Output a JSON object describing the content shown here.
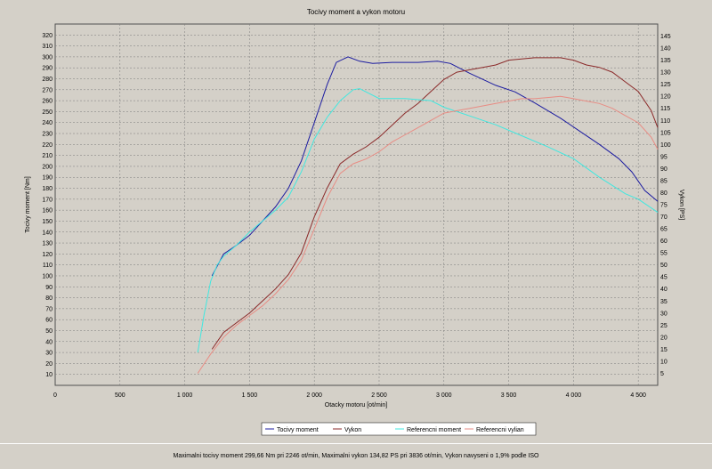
{
  "footer_text": "Maximalni tocivy moment 299,66 Nm pri 2246 ot/min,  Maximalni vykon 134,82 PS pri 3836 ot/min,  Vykon navyseni o 1,9% podle ISO",
  "colors": {
    "background": "#d4d0c8",
    "grid": "#7a7a7a",
    "torque": "#1c1ca0",
    "power": "#8b2a2a",
    "ref_torque": "#40e8e0",
    "ref_power": "#e88c84"
  },
  "chart_data": {
    "type": "line",
    "title": "Tocivy moment a vykon motoru",
    "xlabel": "Otacky motoru [ot/min]",
    "ylabel": "Tocivy moment [Nm]",
    "y2label": "Vykon [PS]",
    "xlim": [
      0,
      4650
    ],
    "ylim": [
      0,
      330
    ],
    "y2lim": [
      0,
      150
    ],
    "x_ticks": [
      0,
      500,
      1000,
      1500,
      2000,
      2500,
      3000,
      3500,
      4000,
      4500
    ],
    "x_tick_labels": [
      "0",
      "500",
      "1 000",
      "1 500",
      "2 000",
      "2 500",
      "3 000",
      "3 500",
      "4 000",
      "4 500"
    ],
    "y_ticks": [
      10,
      20,
      30,
      40,
      50,
      60,
      70,
      80,
      90,
      100,
      110,
      120,
      130,
      140,
      150,
      160,
      170,
      180,
      190,
      200,
      210,
      220,
      230,
      240,
      250,
      260,
      270,
      280,
      290,
      300,
      310,
      320
    ],
    "y2_ticks": [
      5,
      10,
      15,
      20,
      25,
      30,
      35,
      40,
      45,
      50,
      55,
      60,
      65,
      70,
      75,
      80,
      85,
      90,
      95,
      100,
      105,
      110,
      115,
      120,
      125,
      130,
      135,
      140,
      145
    ],
    "grid": true,
    "legend_position": "bottom-center",
    "legend": [
      "Tocivy moment",
      "Vykon",
      "Referencni moment",
      "Referencni vylian"
    ],
    "series": [
      {
        "name": "Tocivy moment",
        "axis": "left",
        "x": [
          1210,
          1300,
          1400,
          1500,
          1600,
          1700,
          1800,
          1900,
          2000,
          2100,
          2170,
          2260,
          2350,
          2450,
          2600,
          2800,
          2950,
          3050,
          3200,
          3400,
          3550,
          3700,
          3900,
          4050,
          4200,
          4350,
          4450,
          4550,
          4650
        ],
        "y": [
          100,
          120,
          128,
          137,
          150,
          163,
          180,
          205,
          240,
          275,
          295,
          300,
          296,
          294,
          295,
          295,
          296,
          294,
          285,
          274,
          268,
          258,
          244,
          232,
          220,
          207,
          195,
          178,
          168
        ]
      },
      {
        "name": "Vykon",
        "axis": "right",
        "x": [
          1210,
          1300,
          1400,
          1500,
          1600,
          1700,
          1800,
          1900,
          2000,
          2100,
          2200,
          2300,
          2400,
          2500,
          2600,
          2700,
          2800,
          2900,
          3000,
          3100,
          3200,
          3300,
          3400,
          3500,
          3600,
          3700,
          3800,
          3900,
          4000,
          4100,
          4200,
          4300,
          4400,
          4500,
          4600,
          4650
        ],
        "y": [
          15,
          22,
          26,
          30,
          35,
          40,
          46,
          55,
          70,
          82,
          92,
          96,
          99,
          103,
          108,
          113,
          117,
          122,
          127,
          130,
          131,
          132,
          133,
          135,
          135.5,
          136,
          136,
          136,
          135,
          133,
          132,
          130,
          126,
          122,
          114,
          107
        ]
      },
      {
        "name": "Referencni moment",
        "axis": "left",
        "x": [
          1100,
          1150,
          1200,
          1250,
          1300,
          1400,
          1500,
          1600,
          1700,
          1800,
          1900,
          2000,
          2100,
          2200,
          2300,
          2350,
          2400,
          2500,
          2700,
          2900,
          3000,
          3200,
          3400,
          3600,
          3800,
          4000,
          4200,
          4400,
          4500,
          4650
        ],
        "y": [
          30,
          65,
          95,
          110,
          118,
          128,
          140,
          150,
          160,
          172,
          195,
          225,
          245,
          260,
          270,
          271,
          268,
          262,
          262,
          260,
          254,
          246,
          238,
          228,
          218,
          207,
          190,
          175,
          170,
          158
        ]
      },
      {
        "name": "Referencni vylian",
        "axis": "right",
        "x": [
          1100,
          1200,
          1300,
          1400,
          1500,
          1600,
          1700,
          1800,
          1900,
          2000,
          2100,
          2200,
          2300,
          2400,
          2500,
          2600,
          2700,
          2800,
          2900,
          3000,
          3100,
          3200,
          3300,
          3400,
          3500,
          3600,
          3700,
          3800,
          3900,
          4000,
          4100,
          4200,
          4300,
          4400,
          4500,
          4600,
          4650
        ],
        "y": [
          5,
          13,
          20,
          25,
          29,
          33,
          38,
          44,
          52,
          65,
          78,
          88,
          92,
          94,
          97,
          101,
          104,
          107,
          110,
          113,
          114,
          115,
          116,
          117,
          118,
          119,
          119,
          119.5,
          120,
          119,
          118,
          117,
          115,
          112,
          109,
          103,
          98
        ]
      }
    ]
  }
}
